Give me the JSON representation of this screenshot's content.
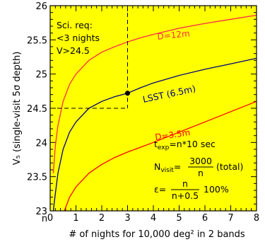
{
  "chart_data": {
    "type": "line",
    "title": "",
    "xlabel": "# of nights for 10,000 deg² in 2 bands",
    "ylabel": "V₅ (single-visit 5σ depth)",
    "xlim": [
      0,
      8
    ],
    "ylim": [
      23,
      26
    ],
    "x_ticks": [
      0,
      1,
      2,
      3,
      4,
      5,
      6,
      7,
      8
    ],
    "x_tick_labels": [
      "0",
      "1",
      "2",
      "3",
      "4",
      "5",
      "6",
      "7",
      "8"
    ],
    "y_ticks": [
      23,
      23.5,
      24,
      24.5,
      25,
      25.5,
      26
    ],
    "y_tick_labels": [
      "23",
      "23.5",
      "24",
      "24.5",
      "25",
      "25.5",
      "26"
    ],
    "background_color": "#ffff00",
    "series": [
      {
        "name": "D=12m",
        "color": "#ff2a4a",
        "x": [
          0.12,
          0.2,
          0.3,
          0.5,
          0.75,
          1,
          1.5,
          2,
          2.5,
          3,
          3.5,
          4,
          5,
          6,
          7,
          8
        ],
        "y": [
          23.55,
          23.95,
          24.25,
          24.6,
          24.85,
          25.0,
          25.2,
          25.32,
          25.4,
          25.47,
          25.53,
          25.58,
          25.67,
          25.74,
          25.8,
          25.86
        ]
      },
      {
        "name": "LSST (6.5m)",
        "color": "#000080",
        "x": [
          0.12,
          0.2,
          0.3,
          0.5,
          0.75,
          1,
          1.5,
          2,
          2.5,
          3,
          3.5,
          4,
          5,
          6,
          7,
          8
        ],
        "y": [
          23.0,
          23.25,
          23.55,
          23.9,
          24.15,
          24.3,
          24.5,
          24.6,
          24.67,
          24.72,
          24.8,
          24.87,
          24.98,
          25.07,
          25.15,
          25.23
        ]
      },
      {
        "name": "D=3.5m",
        "color": "#ff0000",
        "x": [
          0.55,
          0.75,
          1,
          1.5,
          2,
          2.5,
          3,
          3.5,
          4,
          5,
          6,
          7,
          8
        ],
        "y": [
          23.0,
          23.2,
          23.35,
          23.55,
          23.68,
          23.78,
          23.86,
          23.93,
          24.0,
          24.15,
          24.3,
          24.45,
          24.6
        ]
      }
    ],
    "marker": {
      "x": 3,
      "y": 24.72
    },
    "requirement": {
      "x": 3,
      "y": 24.5
    },
    "annotations": {
      "sci_req": [
        "Sci. req:",
        "<3 nights",
        "V>24.5"
      ],
      "d12": "D=12m",
      "lsst": "LSST (6.5m)",
      "d35": "D=3.5m",
      "texp_prefix": "t",
      "texp_sub": "exp",
      "texp_suffix": "=n*10 sec",
      "nvisit_prefix": "N",
      "nvisit_sub": "visit",
      "nvisit_eq": "=",
      "nvisit_num": "3000",
      "nvisit_den": "n",
      "nvisit_suffix": "(total)",
      "eps_prefix": "ε=",
      "eps_num": "n",
      "eps_den": "n+0.5",
      "eps_suffix": "100%",
      "n_label": "n"
    }
  }
}
